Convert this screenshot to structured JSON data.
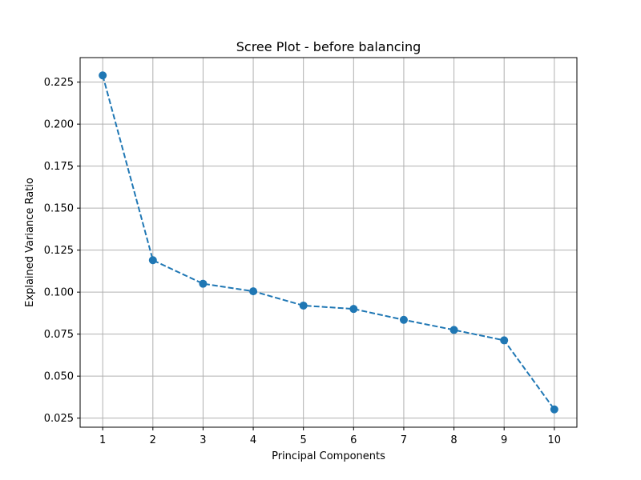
{
  "chart_data": {
    "type": "line",
    "title": "Scree Plot - before balancing",
    "xlabel": "Principal Components",
    "ylabel": "Explained Variance Ratio",
    "x": [
      1,
      2,
      3,
      4,
      5,
      6,
      7,
      8,
      9,
      10
    ],
    "series": [
      {
        "name": "Explained Variance Ratio",
        "values": [
          0.229,
          0.119,
          0.105,
          0.1005,
          0.092,
          0.09,
          0.0835,
          0.0775,
          0.0713,
          0.0302
        ],
        "color": "#1f77b4",
        "line_style": "dashed",
        "marker": "circle"
      }
    ],
    "xticks": [
      1,
      2,
      3,
      4,
      5,
      6,
      7,
      8,
      9,
      10
    ],
    "xtick_labels": [
      "1",
      "2",
      "3",
      "4",
      "5",
      "6",
      "7",
      "8",
      "9",
      "10"
    ],
    "yticks": [
      0.025,
      0.05,
      0.075,
      0.1,
      0.125,
      0.15,
      0.175,
      0.2,
      0.225
    ],
    "ytick_labels": [
      "0.025",
      "0.050",
      "0.075",
      "0.100",
      "0.125",
      "0.150",
      "0.175",
      "0.200",
      "0.225"
    ],
    "xlim": [
      0.55,
      10.45
    ],
    "ylim": [
      0.0196,
      0.2396
    ],
    "grid": true
  }
}
